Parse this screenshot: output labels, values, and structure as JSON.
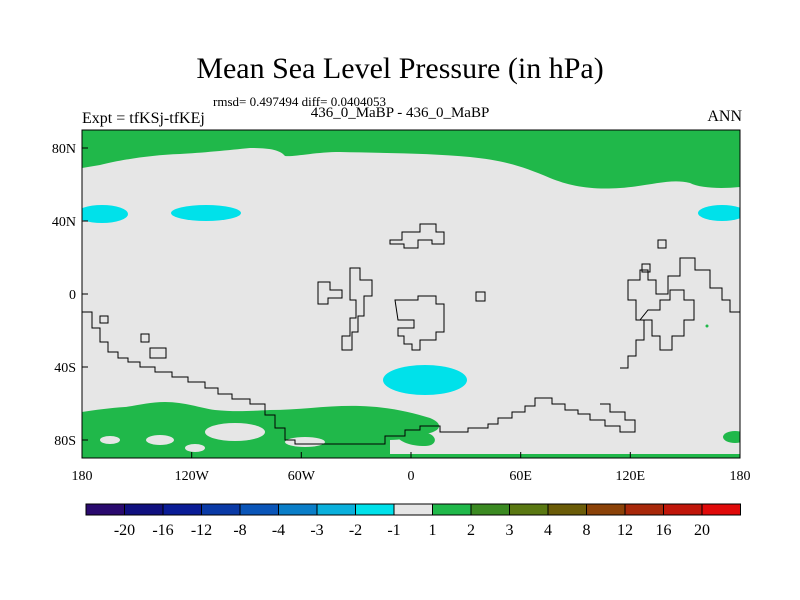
{
  "chart_data": {
    "type": "heatmap",
    "title": "Mean Sea Level Pressure (in hPa)",
    "stats_text": "rmsd= 0.497494 diff= 0.0404053",
    "left_label": "Expt = tfKSj-tfKEj",
    "center_label": "436_0_MaBP - 436_0_MaBP",
    "right_label": "ANN",
    "x_ticks": [
      "180",
      "120W",
      "60W",
      "0",
      "60E",
      "120E",
      "180"
    ],
    "y_ticks": [
      "80N",
      "40N",
      "0",
      "40S",
      "80S"
    ],
    "xlim": [
      -180,
      180
    ],
    "ylim": [
      -90,
      90
    ],
    "colorbar": {
      "labels": [
        "-20",
        "-16",
        "-12",
        "-8",
        "-4",
        "-3",
        "-2",
        "-1",
        "1",
        "2",
        "3",
        "4",
        "8",
        "12",
        "16",
        "20"
      ],
      "colors": [
        "#2a0a6e",
        "#10107f",
        "#0a1c96",
        "#0a3aa6",
        "#0a55b8",
        "#0a7ec8",
        "#0ab0dc",
        "#00e1ea",
        "#e6e6e6",
        "#20b84a",
        "#3b8a22",
        "#5a7812",
        "#6b5c08",
        "#8b4208",
        "#a8280a",
        "#c0160a",
        "#e00a0a"
      ]
    },
    "anomaly_regions": [
      {
        "name": "arctic",
        "value_range": "1 to 2"
      },
      {
        "name": "antarctic",
        "value_range": "1 to 2"
      },
      {
        "name": "north-pacific-east",
        "value_range": "-2 to -1"
      },
      {
        "name": "north-pacific-west",
        "value_range": "-2 to -1"
      },
      {
        "name": "north-pacific-dateline",
        "value_range": "-2 to -1"
      },
      {
        "name": "south-atlantic",
        "value_range": "-2 to -1"
      }
    ]
  }
}
